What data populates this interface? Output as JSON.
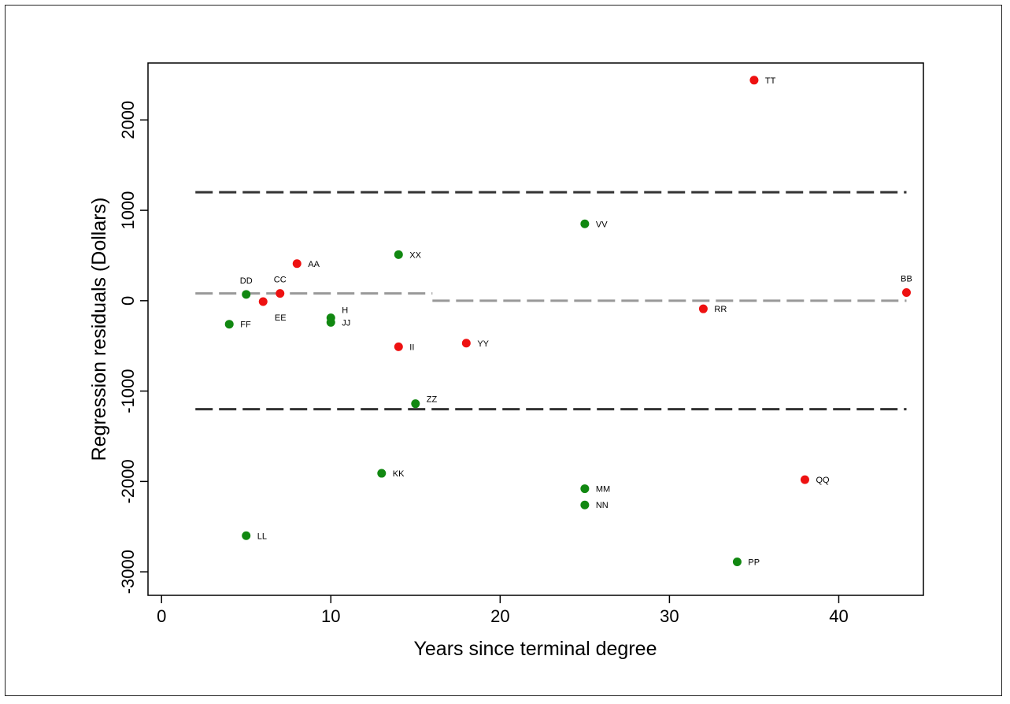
{
  "chart_data": {
    "type": "scatter",
    "title": "",
    "xlabel": "Years since terminal degree",
    "ylabel": "Regression residuals (Dollars)",
    "xlim": [
      -0.8,
      45
    ],
    "ylim": [
      -3260,
      2630
    ],
    "xticks": [
      0,
      10,
      20,
      30,
      40
    ],
    "yticks": [
      -3000,
      -2000,
      -1000,
      0,
      1000,
      2000
    ],
    "grid": false,
    "legend": "none",
    "colors": {
      "red": "#ee1111",
      "green": "#118811",
      "line_dark": "#333333",
      "line_light": "#999999"
    },
    "reference_lines": [
      {
        "style": "dashed",
        "color": "dark",
        "y": 1200,
        "x_range": [
          2,
          44
        ]
      },
      {
        "style": "dashed",
        "color": "dark",
        "y": -1200,
        "x_range": [
          2,
          44
        ]
      },
      {
        "style": "dashed",
        "color": "light",
        "y": 80,
        "x_range": [
          2,
          16
        ]
      },
      {
        "style": "dashed",
        "color": "light",
        "y": 0,
        "x_range": [
          16,
          44
        ]
      }
    ],
    "points": [
      {
        "label": "TT",
        "x": 35,
        "y": 2440,
        "group": "red"
      },
      {
        "label": "VV",
        "x": 25,
        "y": 850,
        "group": "green"
      },
      {
        "label": "XX",
        "x": 14,
        "y": 510,
        "group": "green"
      },
      {
        "label": "AA",
        "x": 8,
        "y": 410,
        "group": "red"
      },
      {
        "label": "DD",
        "x": 5,
        "y": 70,
        "group": "green"
      },
      {
        "label": "CC",
        "x": 7,
        "y": 80,
        "group": "red"
      },
      {
        "label": "EE",
        "x": 6,
        "y": -10,
        "group": "red"
      },
      {
        "label": "BB",
        "x": 44,
        "y": 90,
        "group": "red"
      },
      {
        "label": "RR",
        "x": 32,
        "y": -90,
        "group": "red"
      },
      {
        "label": "FF",
        "x": 4,
        "y": -260,
        "group": "green"
      },
      {
        "label": "H",
        "x": 10,
        "y": -190,
        "group": "green"
      },
      {
        "label": "JJ",
        "x": 10,
        "y": -240,
        "group": "green"
      },
      {
        "label": "II",
        "x": 14,
        "y": -510,
        "group": "red"
      },
      {
        "label": "YY",
        "x": 18,
        "y": -470,
        "group": "red"
      },
      {
        "label": "ZZ",
        "x": 15,
        "y": -1140,
        "group": "green"
      },
      {
        "label": "KK",
        "x": 13,
        "y": -1910,
        "group": "green"
      },
      {
        "label": "MM",
        "x": 25,
        "y": -2080,
        "group": "green"
      },
      {
        "label": "NN",
        "x": 25,
        "y": -2260,
        "group": "green"
      },
      {
        "label": "QQ",
        "x": 38,
        "y": -1980,
        "group": "red"
      },
      {
        "label": "LL",
        "x": 5,
        "y": -2600,
        "group": "green"
      },
      {
        "label": "PP",
        "x": 34,
        "y": -2890,
        "group": "green"
      }
    ]
  }
}
